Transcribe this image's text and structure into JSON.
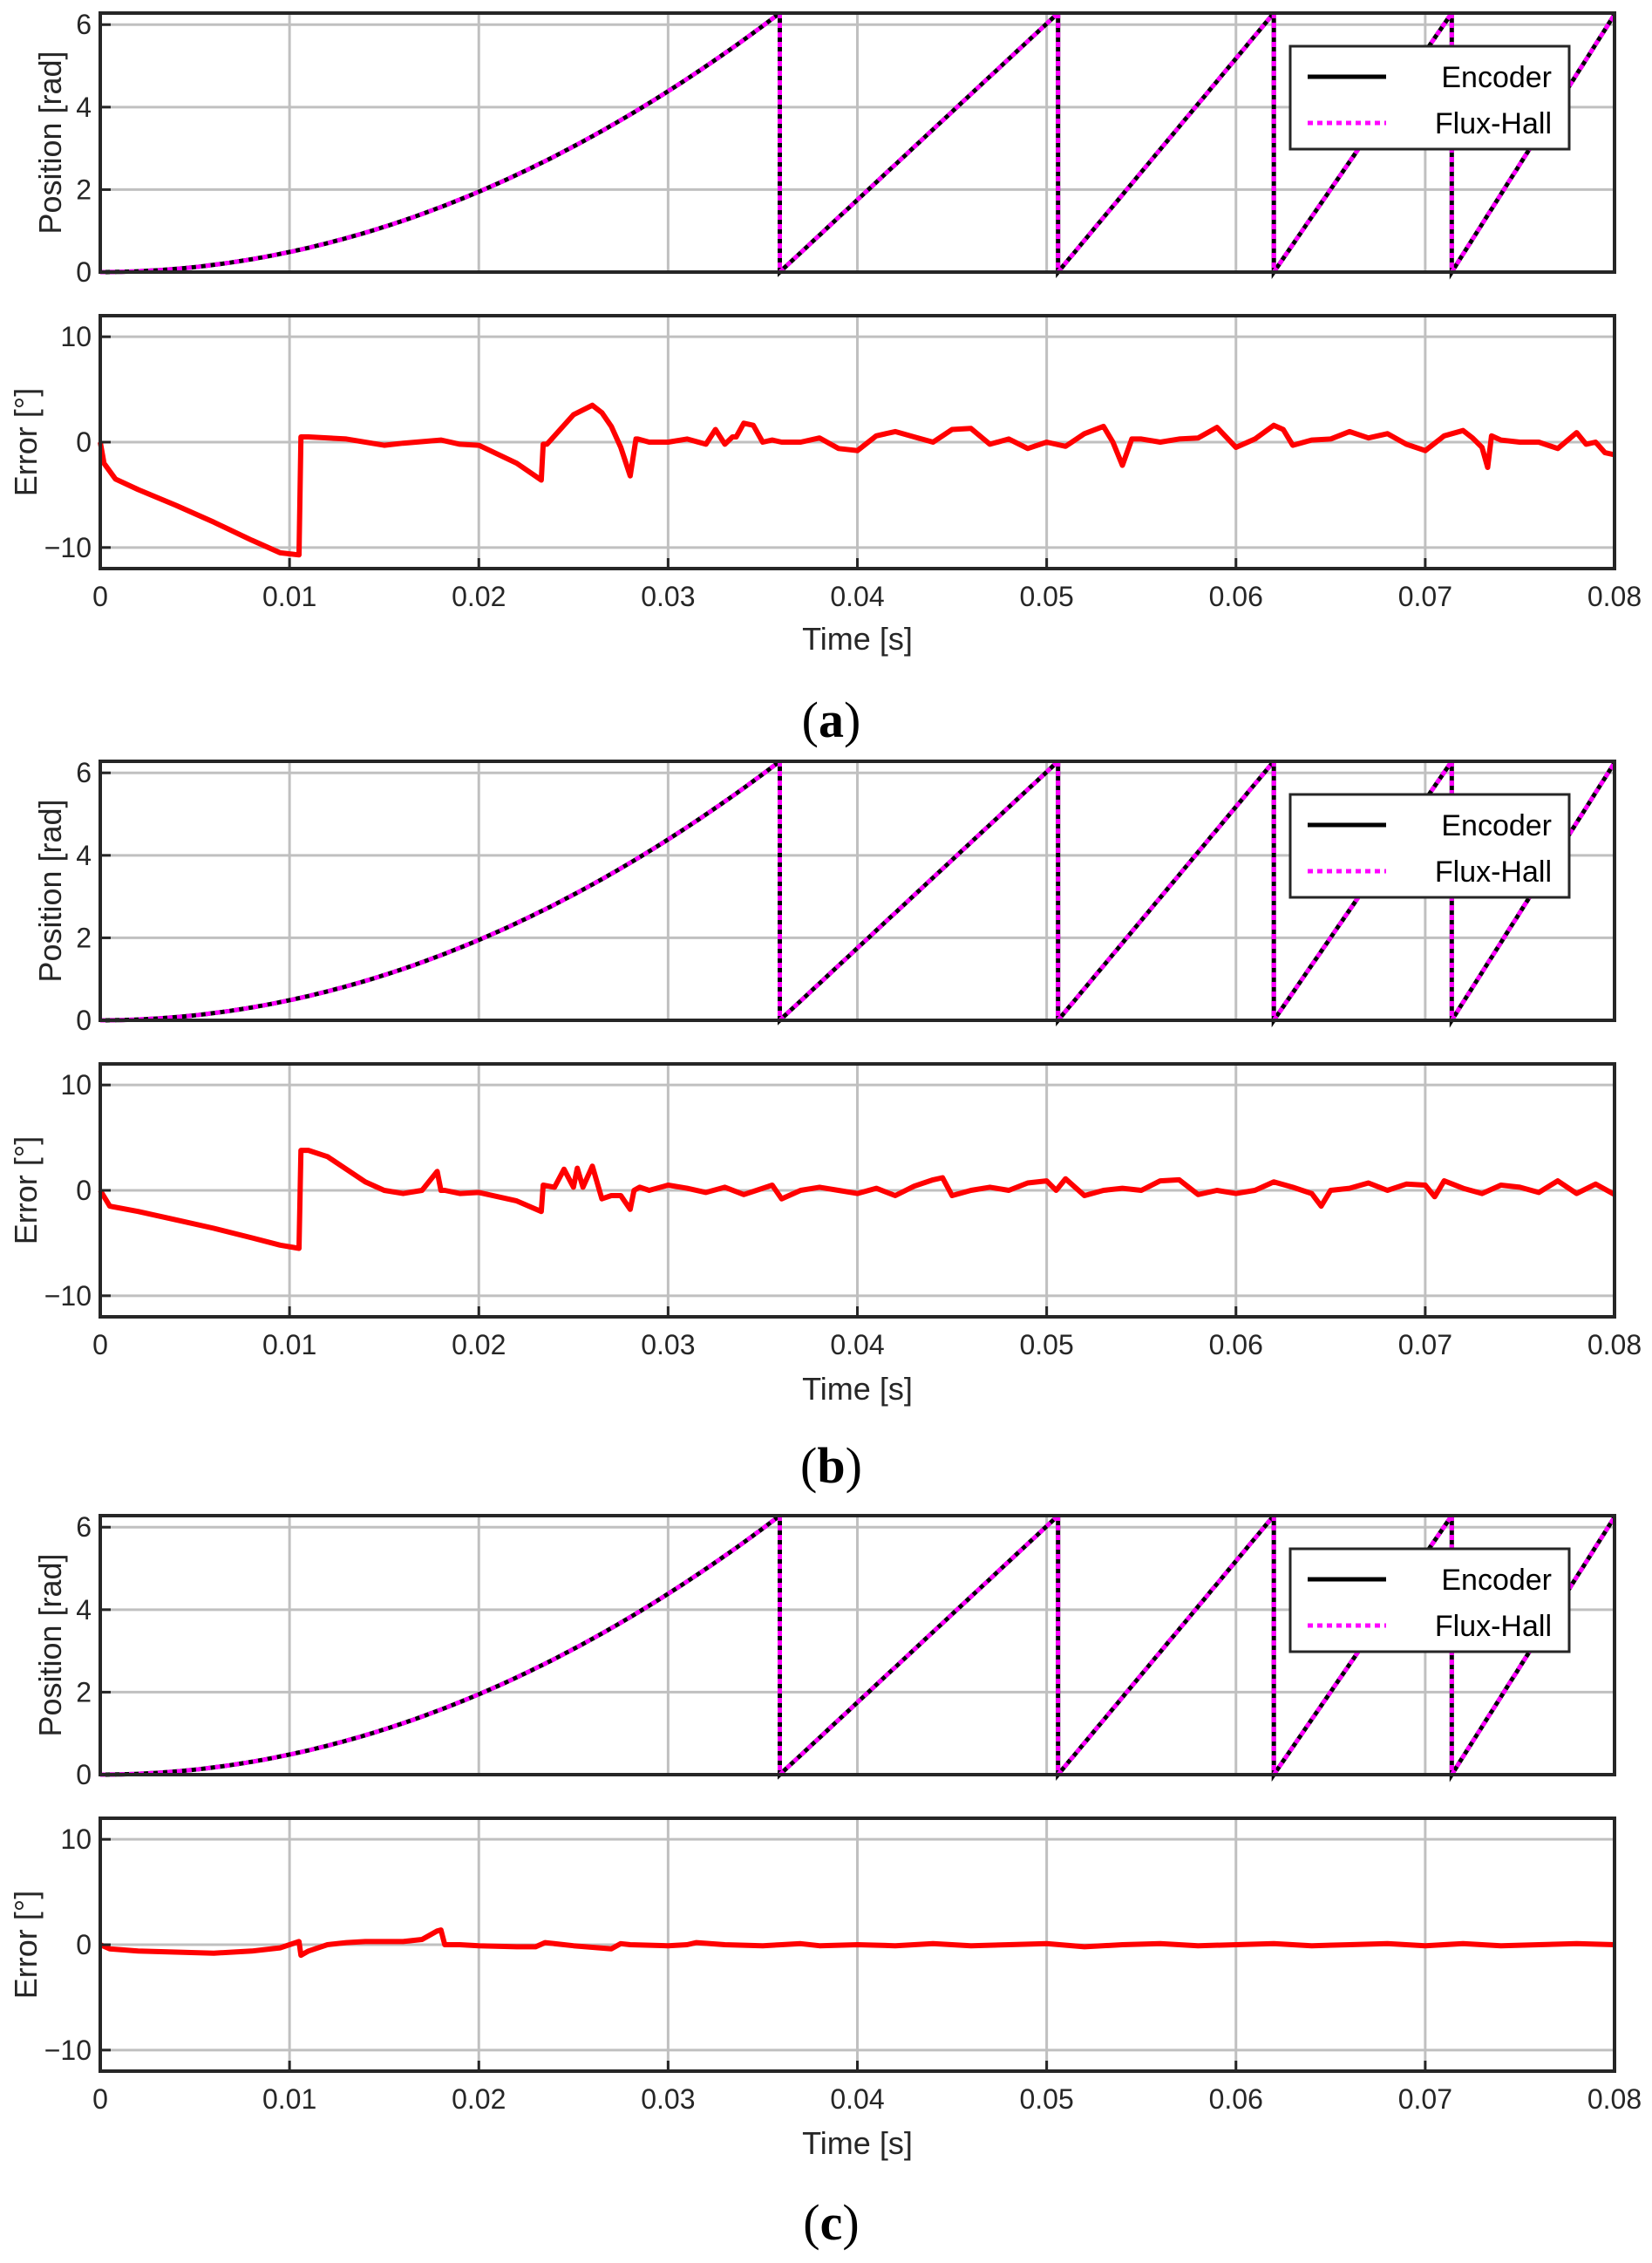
{
  "colors": {
    "encoder": "#000000",
    "fluxhall": "#ff00ff",
    "error": "#ff0000",
    "grid": "#c0c0c0",
    "axes": "#262626"
  },
  "chart_data": [
    {
      "type": "line",
      "panel": "a",
      "caption": "(a)",
      "caption_letter": "a",
      "xlabel": "Time [s]",
      "xlim": [
        0,
        0.08
      ],
      "xticks": [
        "0",
        "0.01",
        "0.02",
        "0.03",
        "0.04",
        "0.05",
        "0.06",
        "0.07",
        "0.08"
      ],
      "position_plot": {
        "ylabel": "Position [rad]",
        "ylim": [
          0,
          6.28
        ],
        "yticks": [
          "0",
          "2",
          "4",
          "6"
        ],
        "legend": [
          "Encoder",
          "Flux-Hall"
        ],
        "legend_position": "top-right",
        "wrap_times": [
          0.0359,
          0.0506,
          0.062,
          0.0714
        ]
      },
      "error_plot": {
        "ylabel": "Error [°]",
        "ylim": [
          -12,
          12
        ],
        "yticks": [
          "−10",
          "0",
          "10"
        ],
        "series": {
          "name": "Error",
          "t": [
            0,
            0.0002,
            0.0008,
            0.002,
            0.004,
            0.006,
            0.008,
            0.0095,
            0.0105,
            0.0106,
            0.011,
            0.013,
            0.015,
            0.016,
            0.018,
            0.019,
            0.02,
            0.022,
            0.0233,
            0.0234,
            0.0236,
            0.025,
            0.026,
            0.0265,
            0.027,
            0.0275,
            0.028,
            0.0283,
            0.0284,
            0.029,
            0.03,
            0.031,
            0.032,
            0.0325,
            0.033,
            0.0334,
            0.0336,
            0.034,
            0.0345,
            0.035,
            0.0355,
            0.036,
            0.037,
            0.038,
            0.039,
            0.04,
            0.041,
            0.042,
            0.043,
            0.044,
            0.045,
            0.046,
            0.047,
            0.048,
            0.049,
            0.05,
            0.051,
            0.052,
            0.053,
            0.0535,
            0.054,
            0.0545,
            0.055,
            0.056,
            0.057,
            0.058,
            0.059,
            0.06,
            0.061,
            0.062,
            0.0625,
            0.063,
            0.064,
            0.065,
            0.066,
            0.067,
            0.068,
            0.069,
            0.07,
            0.071,
            0.072,
            0.0725,
            0.073,
            0.0733,
            0.0735,
            0.074,
            0.075,
            0.076,
            0.077,
            0.078,
            0.0785,
            0.079,
            0.0795,
            0.08
          ],
          "v": [
            0,
            -2,
            -3.5,
            -4.5,
            -6,
            -7.6,
            -9.3,
            -10.5,
            -10.7,
            0.5,
            0.5,
            0.3,
            -0.3,
            -0.1,
            0.2,
            -0.2,
            -0.3,
            -2,
            -3.6,
            -0.2,
            -0.2,
            2.6,
            3.5,
            2.8,
            1.5,
            -0.5,
            -3.2,
            0.3,
            0.3,
            0,
            0,
            0.3,
            -0.2,
            1.2,
            -0.2,
            0.5,
            0.5,
            1.8,
            1.6,
            0,
            0.2,
            0,
            0,
            0.4,
            -0.6,
            -0.8,
            0.6,
            1,
            0.5,
            0,
            1.2,
            1.3,
            -0.2,
            0.3,
            -0.6,
            0,
            -0.4,
            0.8,
            1.5,
            0,
            -2.2,
            0.3,
            0.3,
            0,
            0.3,
            0.4,
            1.4,
            -0.5,
            0.3,
            1.6,
            1.2,
            -0.3,
            0.2,
            0.3,
            1,
            0.4,
            0.8,
            -0.2,
            -0.8,
            0.6,
            1.1,
            0.4,
            -0.5,
            -2.4,
            0.6,
            0.2,
            0,
            0,
            -0.6,
            0.9,
            -0.2,
            0,
            -1,
            -1.2
          ]
        }
      }
    },
    {
      "type": "line",
      "panel": "b",
      "caption": "(b)",
      "caption_letter": "b",
      "xlabel": "Time [s]",
      "xlim": [
        0,
        0.08
      ],
      "xticks": [
        "0",
        "0.01",
        "0.02",
        "0.03",
        "0.04",
        "0.05",
        "0.06",
        "0.07",
        "0.08"
      ],
      "position_plot": {
        "ylabel": "Position [rad]",
        "ylim": [
          0,
          6.28
        ],
        "yticks": [
          "0",
          "2",
          "4",
          "6"
        ],
        "legend": [
          "Encoder",
          "Flux-Hall"
        ],
        "legend_position": "top-right",
        "wrap_times": [
          0.0359,
          0.0506,
          0.062,
          0.0714
        ]
      },
      "error_plot": {
        "ylabel": "Error [°]",
        "ylim": [
          -12,
          12
        ],
        "yticks": [
          "−10",
          "0",
          "10"
        ],
        "series": {
          "name": "Error",
          "t": [
            0,
            0.0005,
            0.002,
            0.004,
            0.006,
            0.008,
            0.0095,
            0.0105,
            0.0106,
            0.011,
            0.012,
            0.013,
            0.014,
            0.015,
            0.016,
            0.017,
            0.0178,
            0.018,
            0.0182,
            0.019,
            0.02,
            0.022,
            0.0233,
            0.0234,
            0.024,
            0.0245,
            0.025,
            0.0252,
            0.0255,
            0.026,
            0.0265,
            0.027,
            0.0275,
            0.028,
            0.0282,
            0.0285,
            0.029,
            0.03,
            0.031,
            0.032,
            0.033,
            0.034,
            0.035,
            0.0355,
            0.036,
            0.037,
            0.038,
            0.039,
            0.04,
            0.041,
            0.042,
            0.043,
            0.044,
            0.0445,
            0.045,
            0.046,
            0.047,
            0.048,
            0.049,
            0.05,
            0.0505,
            0.051,
            0.052,
            0.053,
            0.054,
            0.055,
            0.056,
            0.057,
            0.058,
            0.059,
            0.06,
            0.061,
            0.062,
            0.063,
            0.064,
            0.0645,
            0.065,
            0.066,
            0.067,
            0.068,
            0.069,
            0.07,
            0.0705,
            0.071,
            0.072,
            0.073,
            0.074,
            0.075,
            0.076,
            0.077,
            0.078,
            0.079,
            0.08
          ],
          "v": [
            0,
            -1.5,
            -2,
            -2.8,
            -3.6,
            -4.5,
            -5.2,
            -5.5,
            3.8,
            3.8,
            3.2,
            2,
            0.8,
            0,
            -0.3,
            0,
            1.8,
            0,
            0,
            -0.3,
            -0.2,
            -1,
            -2,
            0.5,
            0.3,
            2,
            0.3,
            2.1,
            0.3,
            2.3,
            -0.8,
            -0.5,
            -0.5,
            -1.8,
            0,
            0.3,
            0,
            0.5,
            0.2,
            -0.2,
            0.3,
            -0.4,
            0.2,
            0.5,
            -0.8,
            0,
            0.3,
            0,
            -0.3,
            0.2,
            -0.5,
            0.4,
            1,
            1.2,
            -0.5,
            0,
            0.3,
            0,
            0.7,
            0.9,
            0,
            1.1,
            -0.5,
            0,
            0.2,
            0,
            0.9,
            1,
            -0.4,
            0,
            -0.3,
            0,
            0.8,
            0.3,
            -0.3,
            -1.5,
            0,
            0.2,
            0.7,
            0,
            0.6,
            0.5,
            -0.6,
            0.9,
            0.2,
            -0.3,
            0.5,
            0.3,
            -0.2,
            0.9,
            -0.3,
            0.6,
            -0.4
          ]
        }
      }
    },
    {
      "type": "line",
      "panel": "c",
      "caption": "(c)",
      "caption_letter": "c",
      "xlabel": "Time [s]",
      "xlim": [
        0,
        0.08
      ],
      "xticks": [
        "0",
        "0.01",
        "0.02",
        "0.03",
        "0.04",
        "0.05",
        "0.06",
        "0.07",
        "0.08"
      ],
      "position_plot": {
        "ylabel": "Position [rad]",
        "ylim": [
          0,
          6.28
        ],
        "yticks": [
          "0",
          "2",
          "4",
          "6"
        ],
        "legend": [
          "Encoder",
          "Flux-Hall"
        ],
        "legend_position": "top-right",
        "wrap_times": [
          0.0359,
          0.0506,
          0.062,
          0.0714
        ]
      },
      "error_plot": {
        "ylabel": "Error [°]",
        "ylim": [
          -12,
          12
        ],
        "yticks": [
          "−10",
          "0",
          "10"
        ],
        "series": {
          "name": "Error",
          "t": [
            0,
            0.0005,
            0.002,
            0.004,
            0.006,
            0.008,
            0.0095,
            0.0105,
            0.0106,
            0.011,
            0.012,
            0.013,
            0.014,
            0.015,
            0.016,
            0.017,
            0.0178,
            0.018,
            0.0182,
            0.019,
            0.02,
            0.022,
            0.023,
            0.0235,
            0.025,
            0.027,
            0.0275,
            0.028,
            0.03,
            0.031,
            0.0315,
            0.033,
            0.035,
            0.036,
            0.037,
            0.038,
            0.04,
            0.042,
            0.044,
            0.046,
            0.048,
            0.05,
            0.052,
            0.054,
            0.056,
            0.058,
            0.06,
            0.062,
            0.064,
            0.066,
            0.068,
            0.07,
            0.072,
            0.074,
            0.076,
            0.078,
            0.08
          ],
          "v": [
            0,
            -0.4,
            -0.6,
            -0.7,
            -0.8,
            -0.6,
            -0.3,
            0.3,
            -1,
            -0.6,
            0,
            0.2,
            0.3,
            0.3,
            0.3,
            0.5,
            1.3,
            1.4,
            0,
            0,
            -0.1,
            -0.2,
            -0.2,
            0.2,
            -0.1,
            -0.4,
            0.1,
            0,
            -0.1,
            0,
            0.2,
            0,
            -0.1,
            0,
            0.1,
            -0.1,
            0,
            -0.1,
            0.1,
            -0.1,
            0,
            0.1,
            -0.2,
            0,
            0.1,
            -0.1,
            0,
            0.1,
            -0.1,
            0,
            0.1,
            -0.1,
            0.1,
            -0.1,
            0,
            0.1,
            0
          ]
        }
      }
    }
  ]
}
